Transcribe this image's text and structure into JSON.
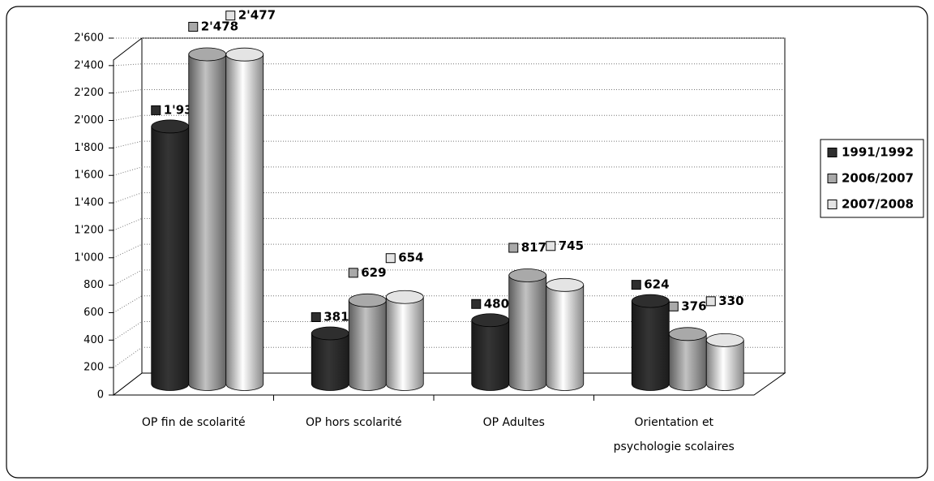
{
  "chart_data": {
    "type": "bar3d",
    "categories": [
      "OP fin de scolarité",
      "OP hors scolarité",
      "OP Adultes",
      "Orientation et psychologie scolaires"
    ],
    "series": [
      {
        "name": "1991/1992",
        "color": "#2e2e2e",
        "values": [
          1936,
          381,
          480,
          624
        ],
        "value_labels": [
          "1'936",
          "381",
          "480",
          "624"
        ]
      },
      {
        "name": "2006/2007",
        "color": "#a9a9a9",
        "values": [
          2478,
          629,
          817,
          376
        ],
        "value_labels": [
          "2'478",
          "629",
          "817",
          "376"
        ]
      },
      {
        "name": "2007/2008",
        "color": "#e4e4e4",
        "values": [
          2477,
          654,
          745,
          330
        ],
        "value_labels": [
          "2'477",
          "654",
          "745",
          "330"
        ]
      }
    ],
    "ylim": [
      0,
      2600
    ],
    "yticks": [
      0,
      200,
      400,
      600,
      800,
      {
        "value": 1000,
        "label": "1'000"
      },
      {
        "value": 1200,
        "label": "1'200"
      },
      {
        "value": 1400,
        "label": "1'400"
      },
      {
        "value": 1600,
        "label": "1'600"
      },
      {
        "value": 1800,
        "label": "1'800"
      },
      {
        "value": 2000,
        "label": "2'000"
      },
      {
        "value": 2200,
        "label": "2'200"
      },
      {
        "value": 2400,
        "label": "2'400"
      },
      {
        "value": 2600,
        "label": "2'600"
      }
    ],
    "grid": true,
    "legend": "right"
  }
}
